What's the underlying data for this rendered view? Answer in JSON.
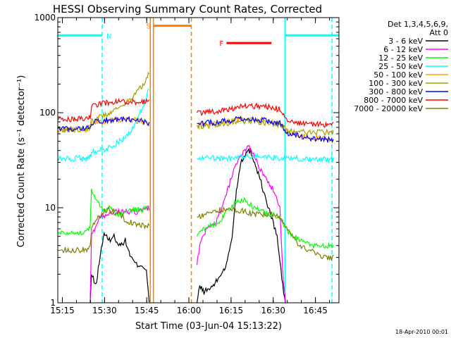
{
  "chart_data": {
    "type": "line",
    "title": "HESSI Observing Summary Count Rates, Corrected",
    "xlabel": "Start Time (03-Jun-04 15:13:22)",
    "ylabel": "Corrected Count Rate (s⁻¹ detector⁻¹)",
    "x_unit": "minutes since 15:13:22",
    "xlim": [
      0,
      100
    ],
    "ylim": [
      1,
      1000
    ],
    "yscale": "log",
    "x_ticks": [
      {
        "label": "15:15",
        "value": 1.63
      },
      {
        "label": "15:30",
        "value": 16.63
      },
      {
        "label": "15:45",
        "value": 31.63
      },
      {
        "label": "16:00",
        "value": 46.63
      },
      {
        "label": "16:15",
        "value": 61.63
      },
      {
        "label": "16:30",
        "value": 76.63
      },
      {
        "label": "16:45",
        "value": 91.63
      }
    ],
    "y_ticks": [
      {
        "label": "1",
        "value": 1
      },
      {
        "label": "10",
        "value": 10
      },
      {
        "label": "100",
        "value": 100
      },
      {
        "label": "1000",
        "value": 1000
      }
    ],
    "legend_header": [
      "Det 1,3,4,5,6,9,",
      "Att 0"
    ],
    "timestamp": "18-Apr-2010 00:01",
    "flags": [
      {
        "label": "N",
        "color": "#00ffff",
        "segments": [
          [
            0,
            15.8
          ],
          [
            80.8,
            100
          ]
        ],
        "y": 650
      },
      {
        "label": "S",
        "color": "#ff8000",
        "segments": [
          [
            34,
            47.5
          ]
        ],
        "y": 820
      },
      {
        "label": "F",
        "color": "#ff0000",
        "segments": [
          [
            60,
            76
          ]
        ],
        "y": 540
      }
    ],
    "vlines": [
      {
        "x": 15.8,
        "color": "#00ffff",
        "style": "dashed"
      },
      {
        "x": 32.9,
        "color": "#ff8000",
        "style": "solid"
      },
      {
        "x": 34.0,
        "color": "#ff8000",
        "style": "solid"
      },
      {
        "x": 47.5,
        "color": "#ff8000",
        "style": "dashed"
      },
      {
        "x": 80.8,
        "color": "#00ffff",
        "style": "solid"
      },
      {
        "x": 97.5,
        "color": "#00ffff",
        "style": "dashed"
      }
    ],
    "series": [
      {
        "name": "3 - 6 keV",
        "color": "#000000",
        "points": [
          [
            11.5,
            1.0
          ],
          [
            12.0,
            2.0
          ],
          [
            13.5,
            1.5
          ],
          [
            15.0,
            3.0
          ],
          [
            16.5,
            5.5
          ],
          [
            18.0,
            4.5
          ],
          [
            20.0,
            5.0
          ],
          [
            22.0,
            4.0
          ],
          [
            24.0,
            4.5
          ],
          [
            26.0,
            3.0
          ],
          [
            28.0,
            2.5
          ],
          [
            30.0,
            2.5
          ],
          [
            31.5,
            2.2
          ],
          [
            32.5,
            1.0
          ],
          [
            null,
            null
          ],
          [
            49.5,
            1.0
          ],
          [
            50.5,
            1.5
          ],
          [
            52.0,
            1.3
          ],
          [
            54.0,
            1.4
          ],
          [
            56.0,
            1.6
          ],
          [
            58.0,
            2.0
          ],
          [
            60.0,
            2.5
          ],
          [
            62.0,
            5.0
          ],
          [
            63.5,
            15.0
          ],
          [
            65.0,
            30.0
          ],
          [
            67.0,
            38.0
          ],
          [
            68.5,
            40.0
          ],
          [
            70.0,
            30.0
          ],
          [
            72.0,
            20.0
          ],
          [
            74.0,
            12.0
          ],
          [
            76.0,
            8.0
          ],
          [
            78.0,
            5.0
          ],
          [
            80.0,
            1.5
          ],
          [
            81.0,
            1.0
          ]
        ]
      },
      {
        "name": "6 - 12 keV",
        "color": "#ff00ff",
        "points": [
          [
            11.5,
            1.0
          ],
          [
            12.0,
            5.0
          ],
          [
            13.0,
            6.0
          ],
          [
            15.0,
            8.0
          ],
          [
            17.0,
            8.5
          ],
          [
            19.0,
            9.0
          ],
          [
            22.0,
            9.0
          ],
          [
            25.0,
            9.0
          ],
          [
            28.0,
            9.0
          ],
          [
            31.0,
            9.5
          ],
          [
            32.5,
            10.0
          ],
          [
            null,
            null
          ],
          [
            49.5,
            2.5
          ],
          [
            50.5,
            4.0
          ],
          [
            52.0,
            5.5
          ],
          [
            54.0,
            6.0
          ],
          [
            56.0,
            7.0
          ],
          [
            58.0,
            9.0
          ],
          [
            60.0,
            14.0
          ],
          [
            62.0,
            22.0
          ],
          [
            64.0,
            30.0
          ],
          [
            66.0,
            38.0
          ],
          [
            67.5,
            45.0
          ],
          [
            69.0,
            40.0
          ],
          [
            71.0,
            30.0
          ],
          [
            73.0,
            22.0
          ],
          [
            75.0,
            18.0
          ],
          [
            77.0,
            15.0
          ],
          [
            79.0,
            10.0
          ],
          [
            80.0,
            2.0
          ],
          [
            81.0,
            1.0
          ]
        ]
      },
      {
        "name": "12 - 25 keV",
        "color": "#00ff00",
        "points": [
          [
            0,
            5.5
          ],
          [
            5,
            5.5
          ],
          [
            10,
            5.5
          ],
          [
            11.5,
            6.5
          ],
          [
            12.0,
            15.0
          ],
          [
            14.0,
            12.0
          ],
          [
            16.0,
            9.5
          ],
          [
            18.0,
            10.0
          ],
          [
            20.0,
            9.0
          ],
          [
            22.0,
            8.5
          ],
          [
            24.0,
            9.0
          ],
          [
            26.0,
            9.5
          ],
          [
            28.0,
            9.5
          ],
          [
            30.0,
            9.5
          ],
          [
            32.5,
            10.0
          ],
          [
            null,
            null
          ],
          [
            49.5,
            5.0
          ],
          [
            52.0,
            6.0
          ],
          [
            55.0,
            6.5
          ],
          [
            58.0,
            7.5
          ],
          [
            60.0,
            9.0
          ],
          [
            62.0,
            10.5
          ],
          [
            64.0,
            12.0
          ],
          [
            66.0,
            12.0
          ],
          [
            68.0,
            11.0
          ],
          [
            70.0,
            10.0
          ],
          [
            73.0,
            9.0
          ],
          [
            76.0,
            8.5
          ],
          [
            79.0,
            8.0
          ],
          [
            82.0,
            5.5
          ],
          [
            86.0,
            4.5
          ],
          [
            90.0,
            4.0
          ],
          [
            95.0,
            4.0
          ],
          [
            98.0,
            4.0
          ]
        ]
      },
      {
        "name": "25 - 50 keV",
        "color": "#00ffff",
        "points": [
          [
            0,
            33
          ],
          [
            5,
            33
          ],
          [
            10,
            33
          ],
          [
            11.5,
            35
          ],
          [
            12.0,
            38
          ],
          [
            15.0,
            40
          ],
          [
            18.0,
            42
          ],
          [
            21.0,
            48
          ],
          [
            24.0,
            55
          ],
          [
            27.0,
            70
          ],
          [
            29.0,
            95
          ],
          [
            31.0,
            130
          ],
          [
            32.5,
            190
          ],
          [
            null,
            null
          ],
          [
            49.5,
            33
          ],
          [
            55.0,
            33
          ],
          [
            60.0,
            33
          ],
          [
            65.0,
            34
          ],
          [
            70.0,
            35
          ],
          [
            75.0,
            34
          ],
          [
            80.0,
            33
          ],
          [
            85.0,
            33
          ],
          [
            90.0,
            32
          ],
          [
            95.0,
            32
          ],
          [
            98.0,
            32
          ]
        ]
      },
      {
        "name": "50 - 100 keV",
        "color": "#ffa000",
        "points": [
          [
            0,
            66
          ],
          [
            5,
            66
          ],
          [
            10,
            67
          ],
          [
            11.5,
            70
          ],
          [
            12.0,
            77
          ],
          [
            15.0,
            80
          ],
          [
            18.0,
            82
          ],
          [
            21.0,
            84
          ],
          [
            24.0,
            84
          ],
          [
            27.0,
            84
          ],
          [
            30.0,
            80
          ],
          [
            32.5,
            75
          ],
          [
            null,
            null
          ],
          [
            49.5,
            74
          ],
          [
            55.0,
            76
          ],
          [
            60.0,
            80
          ],
          [
            65.0,
            84
          ],
          [
            70.0,
            83
          ],
          [
            75.0,
            80
          ],
          [
            79.0,
            76
          ],
          [
            82.0,
            62
          ],
          [
            86.0,
            58
          ],
          [
            90.0,
            55
          ],
          [
            95.0,
            53
          ],
          [
            98.0,
            53
          ]
        ]
      },
      {
        "name": "100 - 300 keV",
        "color": "#a0a000",
        "points": [
          [
            0,
            67
          ],
          [
            5,
            67
          ],
          [
            10,
            68
          ],
          [
            11.5,
            70
          ],
          [
            12.0,
            82
          ],
          [
            15.0,
            90
          ],
          [
            18.0,
            98
          ],
          [
            21.0,
            110
          ],
          [
            24.0,
            125
          ],
          [
            27.0,
            150
          ],
          [
            30.0,
            190
          ],
          [
            32.5,
            260
          ],
          [
            null,
            null
          ],
          [
            49.5,
            72
          ],
          [
            55.0,
            74
          ],
          [
            60.0,
            78
          ],
          [
            65.0,
            82
          ],
          [
            70.0,
            80
          ],
          [
            75.0,
            78
          ],
          [
            79.0,
            75
          ],
          [
            82.0,
            64
          ],
          [
            86.0,
            63
          ],
          [
            90.0,
            62
          ],
          [
            95.0,
            62
          ],
          [
            98.0,
            62
          ]
        ]
      },
      {
        "name": "300 - 800 keV",
        "color": "#0000ff",
        "points": [
          [
            0,
            68
          ],
          [
            5,
            68
          ],
          [
            10,
            69
          ],
          [
            11.5,
            72
          ],
          [
            12.0,
            79
          ],
          [
            15.0,
            82
          ],
          [
            18.0,
            84
          ],
          [
            21.0,
            85
          ],
          [
            24.0,
            85
          ],
          [
            27.0,
            85
          ],
          [
            30.0,
            81
          ],
          [
            32.5,
            77
          ],
          [
            null,
            null
          ],
          [
            49.5,
            77
          ],
          [
            55.0,
            79
          ],
          [
            60.0,
            82
          ],
          [
            65.0,
            86
          ],
          [
            70.0,
            85
          ],
          [
            75.0,
            82
          ],
          [
            79.0,
            78
          ],
          [
            82.0,
            60
          ],
          [
            86.0,
            57
          ],
          [
            90.0,
            54
          ],
          [
            95.0,
            52
          ],
          [
            98.0,
            52
          ]
        ]
      },
      {
        "name": "800 - 7000 keV",
        "color": "#ff0000",
        "points": [
          [
            0,
            85
          ],
          [
            5,
            85
          ],
          [
            10,
            86
          ],
          [
            11.5,
            90
          ],
          [
            12.0,
            115
          ],
          [
            15.0,
            125
          ],
          [
            18.0,
            128
          ],
          [
            21.0,
            130
          ],
          [
            24.0,
            130
          ],
          [
            27.0,
            130
          ],
          [
            30.0,
            130
          ],
          [
            32.5,
            130
          ],
          [
            null,
            null
          ],
          [
            49.5,
            100
          ],
          [
            55.0,
            102
          ],
          [
            60.0,
            108
          ],
          [
            65.0,
            115
          ],
          [
            70.0,
            118
          ],
          [
            75.0,
            115
          ],
          [
            79.0,
            108
          ],
          [
            82.0,
            80
          ],
          [
            86.0,
            78
          ],
          [
            90.0,
            76
          ],
          [
            95.0,
            75
          ],
          [
            98.0,
            75
          ]
        ]
      },
      {
        "name": "7000 - 20000 keV",
        "color": "#808000",
        "points": [
          [
            0,
            3.6
          ],
          [
            5,
            3.6
          ],
          [
            10,
            3.6
          ],
          [
            11.5,
            4.0
          ],
          [
            12.0,
            6.0
          ],
          [
            14.0,
            7.5
          ],
          [
            16.0,
            9.0
          ],
          [
            18.0,
            9.5
          ],
          [
            20.0,
            9.0
          ],
          [
            22.0,
            8.5
          ],
          [
            24.0,
            7.5
          ],
          [
            26.0,
            7.0
          ],
          [
            28.0,
            6.5
          ],
          [
            30.0,
            6.5
          ],
          [
            32.5,
            6.5
          ],
          [
            null,
            null
          ],
          [
            49.5,
            8.0
          ],
          [
            52.0,
            8.5
          ],
          [
            55.0,
            9.0
          ],
          [
            58.0,
            9.5
          ],
          [
            61.0,
            9.5
          ],
          [
            64.0,
            9.5
          ],
          [
            67.0,
            9.0
          ],
          [
            70.0,
            8.5
          ],
          [
            73.0,
            8.5
          ],
          [
            76.0,
            8.5
          ],
          [
            79.0,
            8.0
          ],
          [
            82.0,
            5.5
          ],
          [
            86.0,
            4.0
          ],
          [
            90.0,
            3.5
          ],
          [
            95.0,
            3.0
          ],
          [
            98.0,
            3.0
          ]
        ]
      }
    ]
  }
}
